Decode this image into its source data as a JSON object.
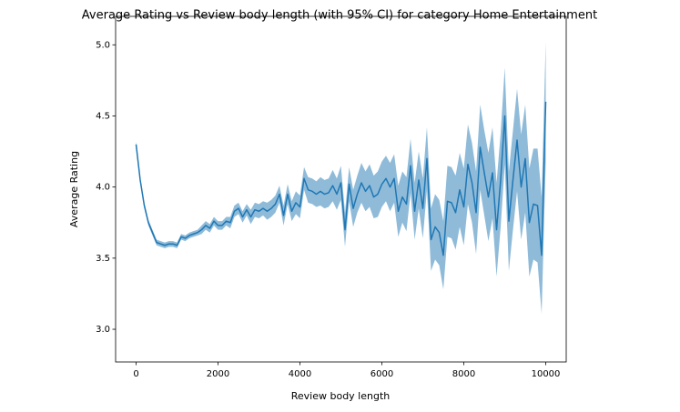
{
  "chart_data": {
    "type": "line",
    "title": "Average Rating vs Review body length (with 95% CI) for category Home Entertainment",
    "x_label": "Review body length",
    "y_label": "Average Rating",
    "color": "#1f77b4",
    "band_opacity": 0.5,
    "xlim": [
      -500,
      10500
    ],
    "ylim": [
      2.77,
      5.2
    ],
    "xticks": [
      0,
      2000,
      4000,
      6000,
      8000,
      10000
    ],
    "yticks": [
      {
        "value": 3.0,
        "label": "3.0"
      },
      3.5,
      {
        "value": 4.0,
        "label": "4.0"
      },
      4.5,
      {
        "value": 5.0,
        "label": "5.0"
      }
    ],
    "x": [
      0,
      100,
      200,
      300,
      400,
      500,
      600,
      700,
      800,
      900,
      1000,
      1100,
      1200,
      1300,
      1400,
      1500,
      1600,
      1700,
      1800,
      1900,
      2000,
      2100,
      2200,
      2300,
      2400,
      2500,
      2600,
      2700,
      2800,
      2900,
      3000,
      3100,
      3200,
      3300,
      3400,
      3500,
      3600,
      3700,
      3800,
      3900,
      4000,
      4100,
      4200,
      4300,
      4400,
      4500,
      4600,
      4700,
      4800,
      4900,
      5000,
      5100,
      5200,
      5300,
      5400,
      5500,
      5600,
      5700,
      5800,
      5900,
      6000,
      6100,
      6200,
      6300,
      6400,
      6500,
      6600,
      6700,
      6800,
      6900,
      7000,
      7100,
      7200,
      7300,
      7400,
      7500,
      7600,
      7700,
      7800,
      7900,
      8000,
      8100,
      8200,
      8300,
      8400,
      8500,
      8600,
      8700,
      8800,
      8900,
      9000,
      9100,
      9200,
      9300,
      9400,
      9500,
      9600,
      9700,
      9800,
      9900,
      10000
    ],
    "values": [
      4.3,
      4.05,
      3.87,
      3.75,
      3.68,
      3.61,
      3.6,
      3.59,
      3.6,
      3.6,
      3.59,
      3.65,
      3.64,
      3.66,
      3.67,
      3.68,
      3.7,
      3.73,
      3.71,
      3.76,
      3.73,
      3.73,
      3.76,
      3.75,
      3.83,
      3.85,
      3.79,
      3.84,
      3.79,
      3.84,
      3.83,
      3.85,
      3.83,
      3.85,
      3.88,
      3.95,
      3.8,
      3.95,
      3.83,
      3.89,
      3.86,
      4.06,
      3.98,
      3.97,
      3.95,
      3.97,
      3.95,
      3.96,
      4.01,
      3.95,
      4.03,
      3.7,
      4.02,
      3.85,
      3.95,
      4.03,
      3.97,
      4.01,
      3.93,
      3.95,
      4.02,
      4.06,
      4.0,
      4.06,
      3.83,
      3.93,
      3.88,
      4.15,
      3.83,
      4.05,
      3.85,
      4.2,
      3.63,
      3.72,
      3.68,
      3.52,
      3.9,
      3.89,
      3.82,
      3.98,
      3.86,
      4.16,
      4.03,
      3.82,
      4.28,
      4.1,
      3.93,
      4.1,
      3.7,
      4.05,
      4.5,
      3.76,
      4.05,
      4.33,
      4.0,
      4.2,
      3.75,
      3.88,
      3.87,
      3.52,
      4.6
    ],
    "ci_lower": [
      4.28,
      4.03,
      3.85,
      3.73,
      3.66,
      3.59,
      3.58,
      3.57,
      3.58,
      3.58,
      3.57,
      3.63,
      3.62,
      3.64,
      3.65,
      3.66,
      3.67,
      3.7,
      3.68,
      3.73,
      3.7,
      3.7,
      3.73,
      3.71,
      3.79,
      3.81,
      3.75,
      3.8,
      3.74,
      3.79,
      3.78,
      3.8,
      3.77,
      3.79,
      3.82,
      3.89,
      3.73,
      3.88,
      3.76,
      3.81,
      3.78,
      3.98,
      3.89,
      3.88,
      3.86,
      3.87,
      3.85,
      3.86,
      3.9,
      3.84,
      3.91,
      3.58,
      3.9,
      3.72,
      3.82,
      3.89,
      3.83,
      3.86,
      3.78,
      3.79,
      3.86,
      3.9,
      3.83,
      3.89,
      3.65,
      3.75,
      3.69,
      3.96,
      3.63,
      3.85,
      3.64,
      3.98,
      3.41,
      3.49,
      3.45,
      3.28,
      3.65,
      3.64,
      3.56,
      3.72,
      3.59,
      3.88,
      3.75,
      3.53,
      3.98,
      3.8,
      3.62,
      3.78,
      3.37,
      3.72,
      4.16,
      3.41,
      3.7,
      3.97,
      3.63,
      3.82,
      3.37,
      3.49,
      3.47,
      3.11,
      4.18
    ],
    "ci_upper": [
      4.32,
      4.07,
      3.89,
      3.77,
      3.7,
      3.63,
      3.62,
      3.61,
      3.62,
      3.62,
      3.61,
      3.67,
      3.66,
      3.68,
      3.69,
      3.7,
      3.73,
      3.76,
      3.74,
      3.79,
      3.76,
      3.76,
      3.79,
      3.79,
      3.87,
      3.89,
      3.83,
      3.88,
      3.84,
      3.89,
      3.88,
      3.9,
      3.89,
      3.91,
      3.94,
      4.01,
      3.87,
      4.02,
      3.9,
      3.97,
      3.94,
      4.14,
      4.07,
      4.06,
      4.04,
      4.07,
      4.05,
      4.06,
      4.12,
      4.06,
      4.15,
      3.82,
      4.14,
      3.98,
      4.08,
      4.17,
      4.11,
      4.16,
      4.08,
      4.11,
      4.18,
      4.22,
      4.17,
      4.23,
      4.01,
      4.11,
      4.07,
      4.34,
      4.03,
      4.25,
      4.06,
      4.42,
      3.85,
      3.95,
      3.91,
      3.76,
      4.15,
      4.14,
      4.08,
      4.24,
      4.13,
      4.44,
      4.31,
      4.11,
      4.58,
      4.4,
      4.24,
      4.42,
      4.03,
      4.38,
      4.84,
      4.11,
      4.4,
      4.69,
      4.37,
      4.58,
      4.13,
      4.27,
      4.27,
      3.93,
      5.02
    ]
  }
}
